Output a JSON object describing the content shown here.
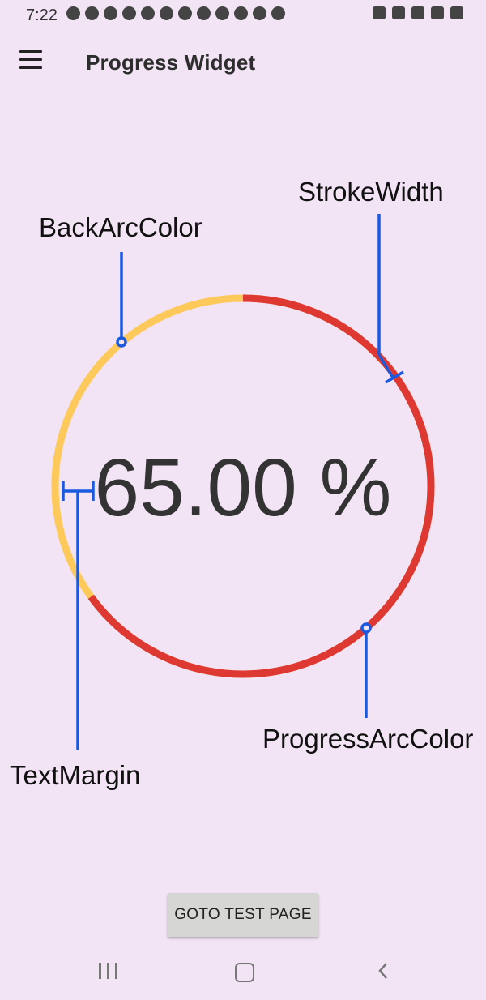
{
  "status_bar": {
    "time": "7:22"
  },
  "app_bar": {
    "title": "Progress Widget",
    "menu_icon": "hamburger-menu-icon"
  },
  "progress_widget": {
    "progress_percent": 65,
    "display_text": "65.00 %",
    "progress_arc_color": "#de3832",
    "back_arc_color": "#fdc95a",
    "text_color": "#333333"
  },
  "annotations": {
    "color": "#1a5ae0",
    "stroke_width_label": "StrokeWidth",
    "back_arc_color_label": "BackArcColor",
    "text_margin_label": "TextMargin",
    "progress_arc_color_label": "ProgressArcColor"
  },
  "goto_button": {
    "label": "GOTO TEST PAGE"
  },
  "nav_bar": {
    "recent_icon": "recent-apps-icon",
    "home_icon": "home-icon",
    "back_icon": "back-icon"
  }
}
